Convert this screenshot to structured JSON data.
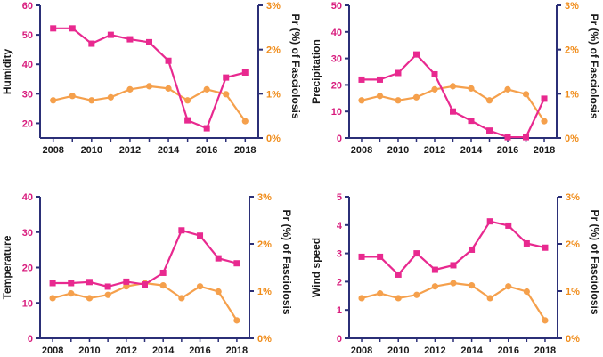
{
  "figure": {
    "colors": {
      "axis": "#2b2f77",
      "env": "#e8298f",
      "fasciolosis": "#f5a04c",
      "left_ticks": "#d81b7d",
      "right_ticks": "#f08c1a",
      "text": "#1a1a1a"
    }
  },
  "chart_data": [
    {
      "type": "line",
      "title": "",
      "xlabel": "",
      "ylabel": "Humidity",
      "y2label": "Pr (%) of Fasciolosis",
      "x": [
        2008,
        2009,
        2010,
        2011,
        2012,
        2013,
        2014,
        2015,
        2016,
        2017,
        2018
      ],
      "xticks": [
        "2008",
        "2010",
        "2012",
        "2014",
        "2016",
        "2018"
      ],
      "ylim": [
        15,
        60
      ],
      "yticks": [
        "20",
        "30",
        "40",
        "50",
        "60"
      ],
      "ytick_values": [
        20,
        30,
        40,
        50,
        60
      ],
      "y2lim": [
        0,
        3
      ],
      "y2ticks": [
        "0%",
        "1%",
        "2%",
        "3%"
      ],
      "y2tick_values": [
        0,
        1,
        2,
        3
      ],
      "series": [
        {
          "name": "Humidity",
          "axis": "left",
          "marker": "square",
          "values": [
            52.2,
            52.2,
            47,
            50,
            48.5,
            47.5,
            41.2,
            21,
            18.3,
            35.5,
            37.2
          ]
        },
        {
          "name": "Pr (%) of Fasciolosis",
          "axis": "right",
          "marker": "circle",
          "values": [
            0.85,
            0.95,
            0.85,
            0.92,
            1.1,
            1.17,
            1.12,
            0.85,
            1.1,
            0.99,
            0.38
          ]
        }
      ]
    },
    {
      "type": "line",
      "title": "",
      "xlabel": "",
      "ylabel": "Precipitation",
      "y2label": "Pr (%) of Fasciolosis",
      "x": [
        2008,
        2009,
        2010,
        2011,
        2012,
        2013,
        2014,
        2015,
        2016,
        2017,
        2018
      ],
      "xticks": [
        "2008",
        "2010",
        "2012",
        "2014",
        "2016",
        "2018"
      ],
      "ylim": [
        0,
        50
      ],
      "yticks": [
        "0",
        "10",
        "20",
        "30",
        "40",
        "50"
      ],
      "ytick_values": [
        0,
        10,
        20,
        30,
        40,
        50
      ],
      "y2lim": [
        0,
        3
      ],
      "y2ticks": [
        "0%",
        "1%",
        "2%",
        "3%"
      ],
      "y2tick_values": [
        0,
        1,
        2,
        3
      ],
      "series": [
        {
          "name": "Precipitation",
          "axis": "left",
          "marker": "square",
          "values": [
            22,
            22,
            24.5,
            31.5,
            24,
            10,
            6.5,
            2.8,
            0.3,
            0.3,
            14.8
          ]
        },
        {
          "name": "Pr (%) of Fasciolosis",
          "axis": "right",
          "marker": "circle",
          "values": [
            0.85,
            0.95,
            0.85,
            0.92,
            1.1,
            1.17,
            1.12,
            0.85,
            1.1,
            0.99,
            0.38
          ]
        }
      ]
    },
    {
      "type": "line",
      "title": "",
      "xlabel": "",
      "ylabel": "Temperature",
      "y2label": "Pr (%) of Fasciolosis",
      "x": [
        2008,
        2009,
        2010,
        2011,
        2012,
        2013,
        2014,
        2015,
        2016,
        2017,
        2018
      ],
      "xticks": [
        "2008",
        "2010",
        "2012",
        "2014",
        "2016",
        "2018"
      ],
      "ylim": [
        0,
        40
      ],
      "yticks": [
        "0",
        "10",
        "20",
        "30",
        "40"
      ],
      "ytick_values": [
        0,
        10,
        20,
        30,
        40
      ],
      "y2lim": [
        0,
        3
      ],
      "y2ticks": [
        "0%",
        "1%",
        "2%",
        "3%"
      ],
      "y2tick_values": [
        0,
        1,
        2,
        3
      ],
      "series": [
        {
          "name": "Temperature",
          "axis": "left",
          "marker": "square",
          "values": [
            15.6,
            15.6,
            15.9,
            14.6,
            16,
            15.2,
            18.5,
            30.5,
            29,
            22.6,
            21.2
          ]
        },
        {
          "name": "Pr (%) of Fasciolosis",
          "axis": "right",
          "marker": "circle",
          "values": [
            0.85,
            0.95,
            0.85,
            0.92,
            1.1,
            1.17,
            1.12,
            0.85,
            1.1,
            0.99,
            0.38
          ]
        }
      ]
    },
    {
      "type": "line",
      "title": "",
      "xlabel": "",
      "ylabel": "Wind speed",
      "y2label": "Pr (%) of Fasciolosis",
      "x": [
        2008,
        2009,
        2010,
        2011,
        2012,
        2013,
        2014,
        2015,
        2016,
        2017,
        2018
      ],
      "xticks": [
        "2008",
        "2010",
        "2012",
        "2014",
        "2016",
        "2018"
      ],
      "ylim": [
        0,
        5
      ],
      "yticks": [
        "0",
        "1",
        "2",
        "3",
        "4",
        "5"
      ],
      "ytick_values": [
        0,
        1,
        2,
        3,
        4,
        5
      ],
      "y2lim": [
        0,
        3
      ],
      "y2ticks": [
        "0%",
        "1%",
        "2%",
        "3%"
      ],
      "y2tick_values": [
        0,
        1,
        2,
        3
      ],
      "series": [
        {
          "name": "Wind speed",
          "axis": "left",
          "marker": "square",
          "values": [
            2.88,
            2.88,
            2.25,
            3,
            2.42,
            2.58,
            3.13,
            4.13,
            3.98,
            3.35,
            3.2
          ]
        },
        {
          "name": "Pr (%) of Fasciolosis",
          "axis": "right",
          "marker": "circle",
          "values": [
            0.85,
            0.95,
            0.85,
            0.92,
            1.1,
            1.17,
            1.12,
            0.85,
            1.1,
            0.99,
            0.38
          ]
        }
      ]
    }
  ]
}
